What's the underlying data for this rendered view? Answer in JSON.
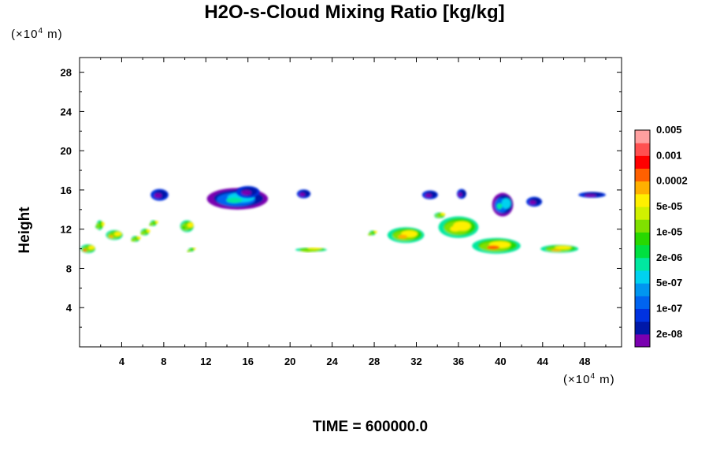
{
  "chart_data": {
    "type": "heatmap",
    "title": "H2O-s-Cloud Mixing Ratio [kg/kg]",
    "ylabel": "Height",
    "x_unit": "(×10⁴ m)",
    "y_unit": "(×10⁴ m)",
    "unit_prefix": "(×10",
    "unit_exp": "4",
    "unit_suffix": " m)",
    "footer": "TIME = 600000.0",
    "xlim": [
      0,
      51.5
    ],
    "ylim": [
      0,
      29.5
    ],
    "x_ticks": [
      4,
      8,
      12,
      16,
      20,
      24,
      28,
      32,
      36,
      40,
      44,
      48
    ],
    "y_ticks": [
      4,
      8,
      12,
      16,
      20,
      24,
      28
    ],
    "colorbar": {
      "colors": [
        "#7a00b0",
        "#0018a8",
        "#0032e0",
        "#0064f0",
        "#0096f0",
        "#00d2f0",
        "#00e8a0",
        "#00e040",
        "#28d800",
        "#80e000",
        "#d0f000",
        "#fff000",
        "#ffb000",
        "#ff6000",
        "#ff0000",
        "#ff5050",
        "#ffa0a0"
      ],
      "labels": [
        "2e-08",
        "1e-07",
        "5e-07",
        "2e-06",
        "1e-05",
        "5e-05",
        "0.0002",
        "0.001",
        "0.005"
      ]
    },
    "features": [
      {
        "x": 0.8,
        "y": 10.0,
        "w": 1.4,
        "h": 0.9,
        "level": 13
      },
      {
        "x": 1.9,
        "y": 12.4,
        "w": 0.6,
        "h": 1.0,
        "level": 7
      },
      {
        "x": 3.3,
        "y": 11.4,
        "w": 1.6,
        "h": 1.0,
        "level": 12
      },
      {
        "x": 5.3,
        "y": 11.0,
        "w": 0.8,
        "h": 0.6,
        "level": 9
      },
      {
        "x": 6.2,
        "y": 11.7,
        "w": 0.8,
        "h": 0.7,
        "level": 9
      },
      {
        "x": 7.0,
        "y": 12.6,
        "w": 0.6,
        "h": 0.6,
        "level": 8
      },
      {
        "x": 7.6,
        "y": 15.5,
        "w": 1.7,
        "h": 1.2,
        "level": 1
      },
      {
        "x": 10.2,
        "y": 12.3,
        "w": 1.3,
        "h": 1.2,
        "level": 8
      },
      {
        "x": 10.6,
        "y": 9.9,
        "w": 0.5,
        "h": 0.4,
        "level": 9
      },
      {
        "x": 15.0,
        "y": 15.1,
        "w": 5.8,
        "h": 2.2,
        "level": 3
      },
      {
        "x": 16.0,
        "y": 15.8,
        "w": 2.2,
        "h": 1.2,
        "level": 1
      },
      {
        "x": 21.3,
        "y": 15.6,
        "w": 1.3,
        "h": 0.9,
        "level": 1
      },
      {
        "x": 22.0,
        "y": 9.9,
        "w": 3.0,
        "h": 0.4,
        "level": 9
      },
      {
        "x": 27.8,
        "y": 11.6,
        "w": 0.6,
        "h": 0.5,
        "level": 9
      },
      {
        "x": 31.0,
        "y": 11.4,
        "w": 3.5,
        "h": 1.6,
        "level": 12
      },
      {
        "x": 33.3,
        "y": 15.5,
        "w": 1.5,
        "h": 0.9,
        "level": 1
      },
      {
        "x": 36.0,
        "y": 12.2,
        "w": 3.8,
        "h": 2.2,
        "level": 11
      },
      {
        "x": 36.3,
        "y": 15.6,
        "w": 0.9,
        "h": 1.0,
        "level": 1
      },
      {
        "x": 39.6,
        "y": 10.3,
        "w": 4.6,
        "h": 1.6,
        "level": 13
      },
      {
        "x": 40.2,
        "y": 14.5,
        "w": 2.0,
        "h": 2.4,
        "level": 4
      },
      {
        "x": 43.2,
        "y": 14.8,
        "w": 1.5,
        "h": 1.0,
        "level": 1
      },
      {
        "x": 45.6,
        "y": 10.0,
        "w": 3.6,
        "h": 0.8,
        "level": 12
      },
      {
        "x": 48.7,
        "y": 15.5,
        "w": 2.6,
        "h": 0.6,
        "level": 1
      },
      {
        "x": 34.2,
        "y": 13.4,
        "w": 1.0,
        "h": 0.6,
        "level": 6
      }
    ]
  }
}
